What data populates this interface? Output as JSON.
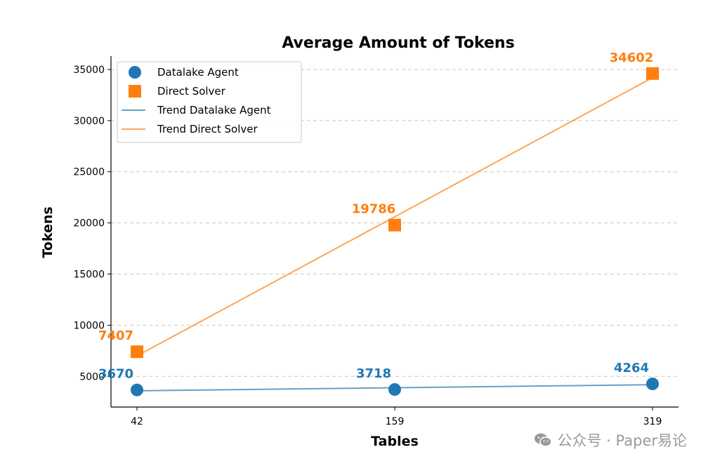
{
  "chart_data": {
    "type": "scatter",
    "title": "Average Amount of Tokens",
    "xlabel": "Tables",
    "ylabel": "Tokens",
    "categories": [
      "42",
      "159",
      "319"
    ],
    "yticks": [
      5000,
      10000,
      15000,
      20000,
      25000,
      30000,
      35000
    ],
    "ylim": [
      2000,
      36300
    ],
    "grid": "horizontal dashed",
    "legend_position": "top-left",
    "series": [
      {
        "name": "Datalake Agent",
        "marker": "circle",
        "color": "#1f77b4",
        "values": [
          3670,
          3718,
          4264
        ]
      },
      {
        "name": "Direct Solver",
        "marker": "square",
        "color": "#ff7f0e",
        "values": [
          7407,
          19786,
          34602
        ]
      }
    ],
    "trend_lines": [
      {
        "name": "Trend Datalake Agent",
        "color": "#1f77b4"
      },
      {
        "name": "Trend Direct Solver",
        "color": "#ff7f0e"
      }
    ]
  },
  "watermark": {
    "text": "公众号 · Paper易论",
    "icon": "wechat-icon"
  }
}
